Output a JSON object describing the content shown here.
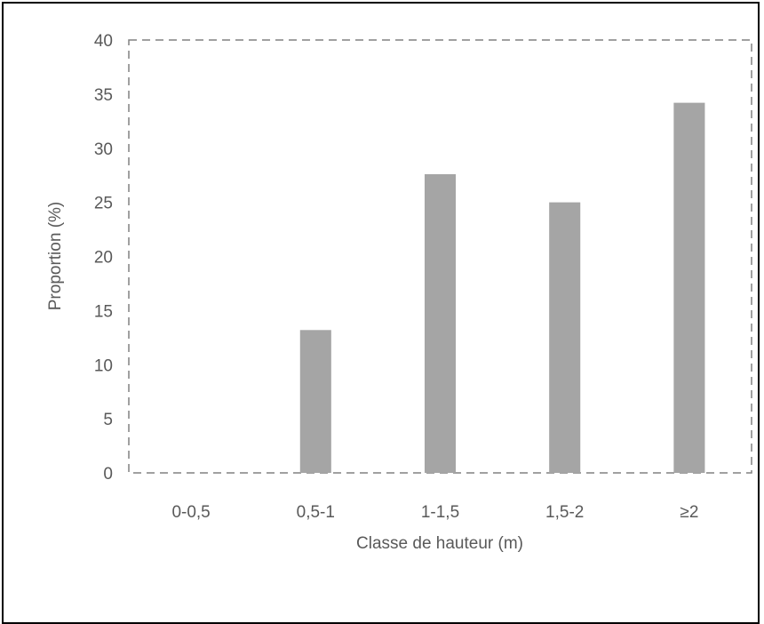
{
  "chart_data": {
    "type": "bar",
    "title": "",
    "xlabel": "Classe de hauteur (m)",
    "ylabel": "Proportion (%)",
    "categories": [
      "0-0,5",
      "0,5-1",
      "1-1,5",
      "1,5-2",
      "≥2"
    ],
    "values": [
      0,
      13.2,
      27.6,
      25.0,
      34.2
    ],
    "ylim": [
      0,
      40
    ],
    "yticks": [
      "0",
      "5",
      "10",
      "15",
      "20",
      "25",
      "30",
      "35",
      "40"
    ],
    "grid": false,
    "legend": "none",
    "bar_color": "#a5a5a5",
    "plot_border_color": "#808080"
  }
}
